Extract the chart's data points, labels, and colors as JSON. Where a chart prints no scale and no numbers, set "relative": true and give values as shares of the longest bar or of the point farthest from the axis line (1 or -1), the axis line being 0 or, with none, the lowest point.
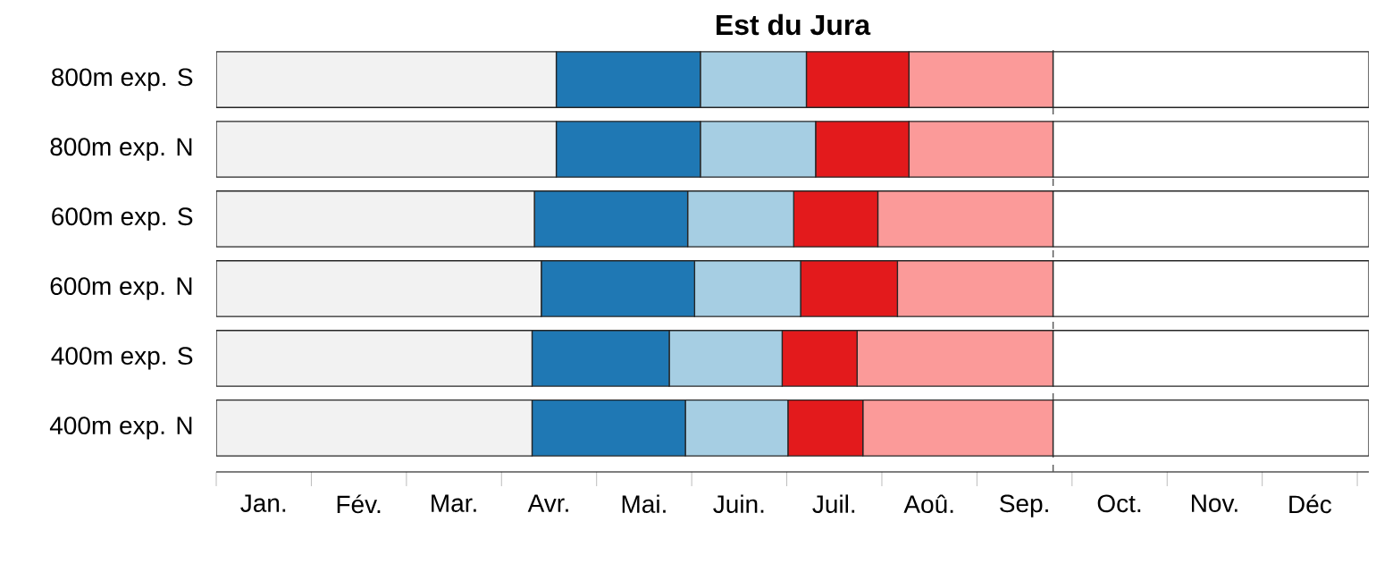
{
  "chart_data": {
    "type": "bar",
    "orientation": "horizontal",
    "stacked": true,
    "relative": true,
    "title": "Est du Jura",
    "categories": [
      "800m exp. S",
      "800m exp. N",
      "600m exp. S",
      "600m exp. N",
      "400m exp. S",
      "400m exp. N"
    ],
    "series": [
      {
        "color": "#f2f2f2",
        "values": [
          0.295,
          0.295,
          0.276,
          0.282,
          0.274,
          0.274
        ]
      },
      {
        "color": "#1f78b4",
        "values": [
          0.125,
          0.125,
          0.133,
          0.133,
          0.119,
          0.133
        ]
      },
      {
        "color": "#a6cee3",
        "values": [
          0.092,
          0.1,
          0.092,
          0.092,
          0.098,
          0.089
        ]
      },
      {
        "color": "#e31a1c",
        "values": [
          0.089,
          0.081,
          0.073,
          0.084,
          0.065,
          0.065
        ]
      },
      {
        "color": "#fb9a99",
        "values": [
          0.125,
          0.125,
          0.152,
          0.135,
          0.17,
          0.165
        ]
      },
      {
        "color": "#ffffff",
        "values": [
          0.274,
          0.274,
          0.274,
          0.274,
          0.274,
          0.274
        ]
      }
    ],
    "annotations": [
      "Jan.",
      "Fév.",
      "Mar.",
      "Avr.",
      "Mai.",
      "Juin.",
      "Juil.",
      "Aoû.",
      "Sep.",
      "Oct.",
      "Nov.",
      "Déc"
    ],
    "ref_lines": [
      {
        "axis": "x",
        "value": 0.726,
        "color": "#555555",
        "line_style": "dashed"
      }
    ],
    "grid": false
  }
}
